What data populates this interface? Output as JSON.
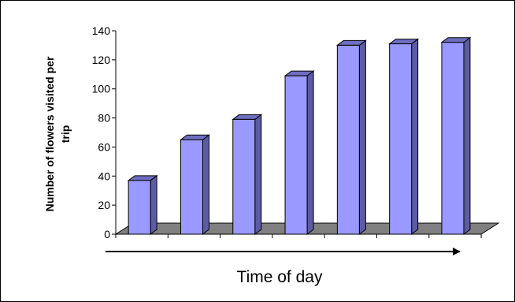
{
  "chart_data": {
    "type": "bar",
    "categories": [
      "",
      "",
      "",
      "",
      "",
      "",
      ""
    ],
    "values": [
      37,
      65,
      79,
      109,
      130,
      131,
      132
    ],
    "ylabel_lines": [
      "Number of flowers visited per",
      "trip"
    ],
    "xlabel": "Time of day",
    "ylim": [
      0,
      140
    ],
    "yticks": [
      0,
      20,
      40,
      60,
      80,
      100,
      120,
      140
    ],
    "grid": false,
    "legend": "none",
    "style": "3d-column",
    "colors": {
      "bar_front": "#9999ff",
      "bar_side": "#5c5ca4",
      "bar_top": "#6e6ec0",
      "bar_outline": "#000000",
      "floor": "#808080"
    }
  }
}
